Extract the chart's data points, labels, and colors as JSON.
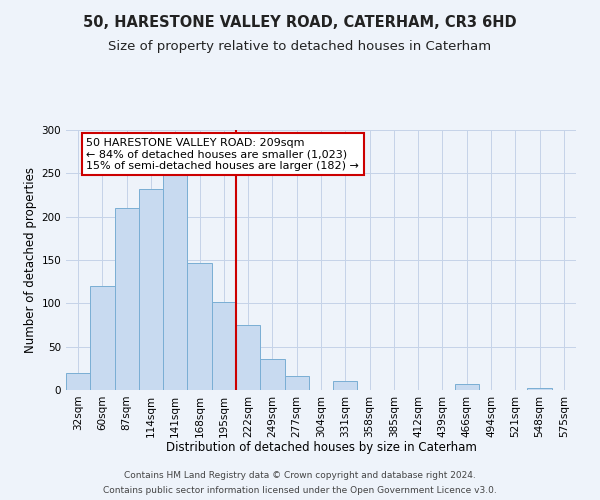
{
  "title": "50, HARESTONE VALLEY ROAD, CATERHAM, CR3 6HD",
  "subtitle": "Size of property relative to detached houses in Caterham",
  "xlabel": "Distribution of detached houses by size in Caterham",
  "ylabel": "Number of detached properties",
  "bar_labels": [
    "32sqm",
    "60sqm",
    "87sqm",
    "114sqm",
    "141sqm",
    "168sqm",
    "195sqm",
    "222sqm",
    "249sqm",
    "277sqm",
    "304sqm",
    "331sqm",
    "358sqm",
    "385sqm",
    "412sqm",
    "439sqm",
    "466sqm",
    "494sqm",
    "521sqm",
    "548sqm",
    "575sqm"
  ],
  "bar_values": [
    20,
    120,
    210,
    232,
    250,
    147,
    101,
    75,
    36,
    16,
    0,
    10,
    0,
    0,
    0,
    0,
    7,
    0,
    0,
    2,
    0
  ],
  "bar_color": "#c8daf0",
  "bar_edgecolor": "#7aaed4",
  "bar_width": 1.0,
  "vline_x": 6.5,
  "vline_color": "#cc0000",
  "annotation_text": "50 HARESTONE VALLEY ROAD: 209sqm\n← 84% of detached houses are smaller (1,023)\n15% of semi-detached houses are larger (182) →",
  "annotation_box_edgecolor": "#cc0000",
  "annotation_box_facecolor": "#ffffff",
  "ylim": [
    0,
    300
  ],
  "yticks": [
    0,
    50,
    100,
    150,
    200,
    250,
    300
  ],
  "footer1": "Contains HM Land Registry data © Crown copyright and database right 2024.",
  "footer2": "Contains public sector information licensed under the Open Government Licence v3.0.",
  "bg_color": "#eef3fa",
  "grid_color": "#c5d3e8",
  "title_fontsize": 10.5,
  "subtitle_fontsize": 9.5,
  "xlabel_fontsize": 8.5,
  "ylabel_fontsize": 8.5,
  "tick_fontsize": 7.5,
  "annotation_fontsize": 8,
  "footer_fontsize": 6.5
}
